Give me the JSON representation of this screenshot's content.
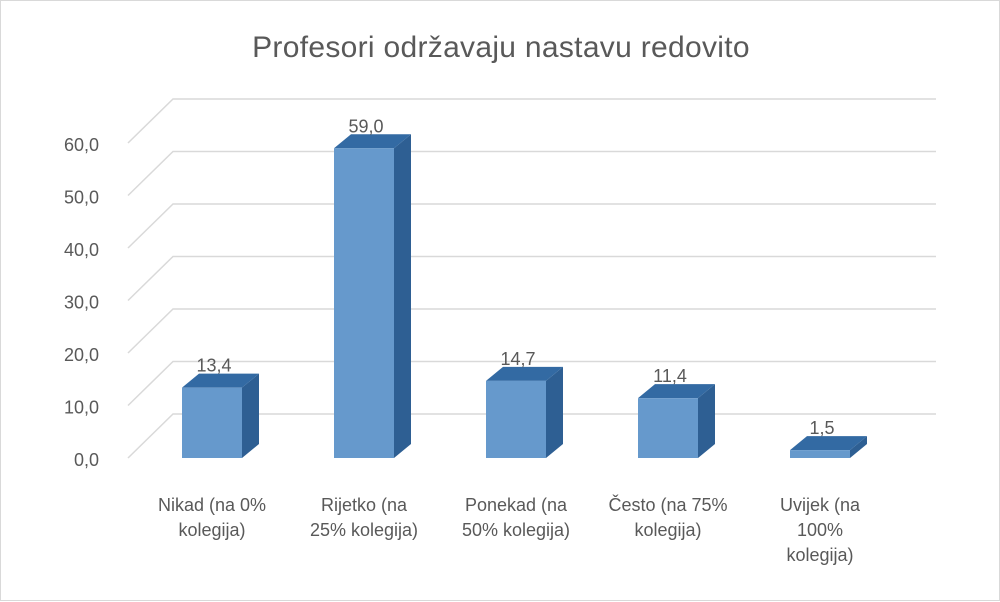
{
  "chart_data": {
    "type": "bar",
    "title": "Profesori održavaju nastavu redovito",
    "categories": [
      [
        "Nikad (na 0%",
        "kolegija)"
      ],
      [
        "Rijetko (na",
        "25% kolegija)"
      ],
      [
        "Ponekad (na",
        "50% kolegija)"
      ],
      [
        "Često (na 75%",
        "kolegija)"
      ],
      [
        "Uvijek (na",
        "100%",
        "kolegija)"
      ]
    ],
    "values": [
      13.4,
      59.0,
      14.7,
      11.4,
      1.5
    ],
    "data_labels": [
      "13,4",
      "59,0",
      "14,7",
      "11,4",
      "1,5"
    ],
    "ylim": [
      0,
      60
    ],
    "yticks": [
      "0,0",
      "10,0",
      "20,0",
      "30,0",
      "40,0",
      "50,0",
      "60,0"
    ],
    "grid": true,
    "style": "3d-column",
    "colors": {
      "front": "#6699cc",
      "side": "#2e5f93",
      "top": "#336aa3",
      "grid": "#d9d9d9",
      "text": "#595959"
    }
  }
}
